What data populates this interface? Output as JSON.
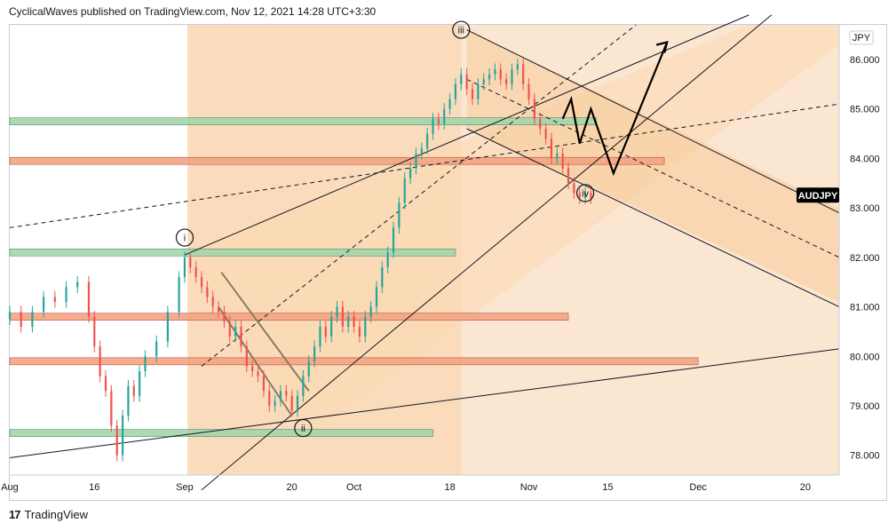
{
  "header": {
    "text": "CyclicalWaves published on TradingView.com, Nov 12, 2021 14:28 UTC+3:30"
  },
  "footer": {
    "brand": "TradingView"
  },
  "colors": {
    "up": "#26a69a",
    "down": "#ef5350",
    "fib_band": "#f8d2ad",
    "channel_fill": "#fcd9b0",
    "zone_red": "#f4a582",
    "zone_green": "#a5d6a7"
  },
  "chart_data": {
    "type": "candlestick",
    "symbol": "AUDJPY",
    "currency_label": "JPY",
    "price_tag": "AUDJPY",
    "y_ticks": [
      86,
      85,
      84,
      83,
      82,
      81,
      80,
      79,
      78
    ],
    "y_tick_labels": [
      "86.000",
      "85.000",
      "84.000",
      "83.000",
      "82.000",
      "81.000",
      "80.000",
      "79.000",
      "78.000"
    ],
    "ylim": [
      77.6,
      86.7
    ],
    "x_tick_labels": [
      {
        "day": 0,
        "label": "Aug"
      },
      {
        "day": 15,
        "label": "16"
      },
      {
        "day": 31,
        "label": "Sep"
      },
      {
        "day": 50,
        "label": "20"
      },
      {
        "day": 61,
        "label": "Oct"
      },
      {
        "day": 78,
        "label": "18"
      },
      {
        "day": 92,
        "label": "Nov"
      },
      {
        "day": 106,
        "label": "15"
      },
      {
        "day": 122,
        "label": "Dec"
      },
      {
        "day": 141,
        "label": "20"
      }
    ],
    "wave_labels": [
      {
        "label": "i",
        "day": 31,
        "price": 82.4
      },
      {
        "label": "ii",
        "day": 52,
        "price": 78.55
      },
      {
        "label": "iii",
        "day": 80,
        "price": 86.6
      },
      {
        "label": "iv",
        "day": 102,
        "price": 83.3
      }
    ],
    "zones": [
      {
        "price": 84.75,
        "from_day": 0,
        "to_day": 104,
        "color": "green"
      },
      {
        "price": 83.95,
        "from_day": 0,
        "to_day": 116,
        "color": "red"
      },
      {
        "price": 82.1,
        "from_day": 0,
        "to_day": 79,
        "color": "green"
      },
      {
        "price": 80.8,
        "from_day": 0,
        "to_day": 99,
        "color": "red"
      },
      {
        "price": 79.9,
        "from_day": 0,
        "to_day": 122,
        "color": "red"
      },
      {
        "price": 78.45,
        "from_day": 0,
        "to_day": 75,
        "color": "green"
      }
    ],
    "series": [
      {
        "name": "AUDJPY",
        "x": [
          0,
          2,
          4,
          6,
          8,
          10,
          12,
          14,
          15,
          16,
          17,
          18,
          19,
          20,
          21,
          22,
          23,
          24,
          26,
          28,
          30,
          31,
          32,
          33,
          34,
          35,
          36,
          37,
          38,
          39,
          40,
          41,
          42,
          43,
          44,
          45,
          46,
          47,
          48,
          49,
          50,
          51,
          52,
          53,
          54,
          55,
          56,
          57,
          58,
          59,
          60,
          61,
          62,
          63,
          64,
          65,
          66,
          67,
          68,
          69,
          70,
          71,
          72,
          73,
          74,
          75,
          76,
          77,
          78,
          79,
          80,
          81,
          82,
          83,
          84,
          85,
          86,
          87,
          88,
          89,
          90,
          91,
          92,
          93,
          94,
          95,
          96,
          97,
          98,
          99,
          100,
          101,
          102,
          103
        ],
        "close": [
          80.9,
          80.6,
          80.9,
          81.2,
          81.1,
          81.4,
          81.5,
          80.8,
          80.2,
          79.6,
          79.3,
          78.6,
          78.0,
          78.8,
          79.4,
          79.2,
          79.7,
          80.0,
          80.3,
          80.9,
          81.6,
          82.0,
          81.8,
          81.6,
          81.4,
          81.2,
          81.0,
          80.9,
          80.7,
          80.4,
          80.6,
          80.2,
          79.8,
          79.7,
          79.6,
          79.3,
          79.0,
          79.1,
          79.3,
          79.2,
          78.9,
          79.2,
          79.6,
          79.9,
          80.2,
          80.6,
          80.4,
          80.8,
          81.0,
          80.6,
          80.8,
          80.6,
          80.4,
          80.8,
          81.0,
          81.4,
          81.8,
          82.1,
          82.6,
          83.1,
          83.6,
          83.8,
          84.1,
          84.2,
          84.5,
          84.8,
          84.7,
          85.0,
          85.2,
          85.5,
          85.7,
          85.4,
          85.2,
          85.5,
          85.6,
          85.7,
          85.8,
          85.6,
          85.5,
          85.8,
          85.9,
          85.5,
          85.2,
          84.8,
          84.6,
          84.4,
          84.0,
          84.1,
          83.8,
          83.5,
          83.3,
          83.2,
          83.3,
          83.2
        ]
      }
    ]
  }
}
